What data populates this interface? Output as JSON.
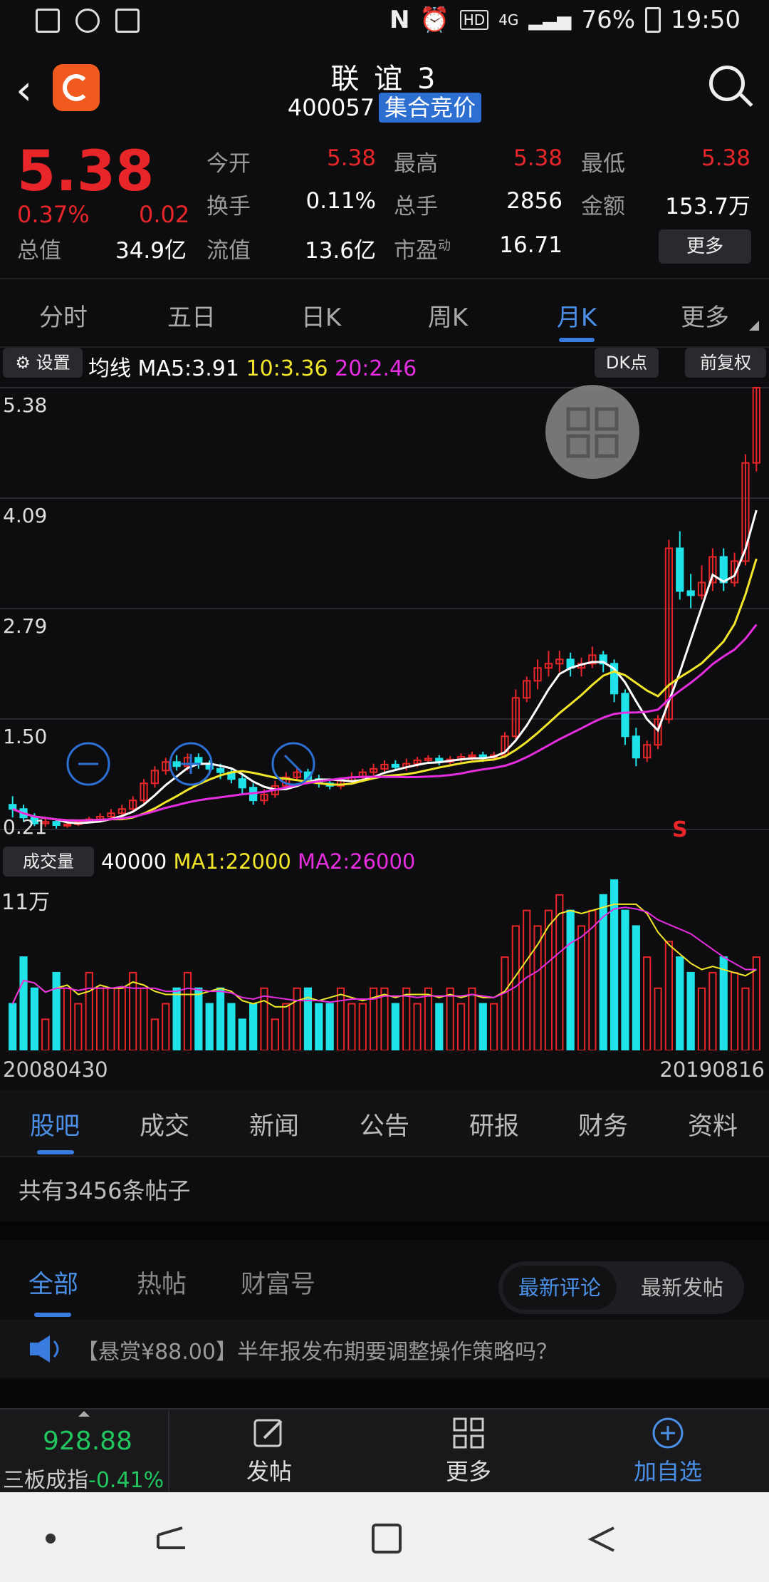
{
  "status_bar": {
    "battery": "76%",
    "time": "19:50",
    "network": "4G",
    "hd": "HD"
  },
  "header": {
    "title": "联 谊 3",
    "code": "400057",
    "badge": "集合竞价"
  },
  "quote": {
    "price": "5.38",
    "change_pct": "0.37%",
    "change": "0.02",
    "fields": [
      {
        "label": "今开",
        "value": "5.38",
        "color": "red"
      },
      {
        "label": "最高",
        "value": "5.38",
        "color": "red"
      },
      {
        "label": "最低",
        "value": "5.38",
        "color": "red"
      },
      {
        "label": "换手",
        "value": "0.11%",
        "color": "white"
      },
      {
        "label": "总手",
        "value": "2856",
        "color": "white"
      },
      {
        "label": "金额",
        "value": "153.7万",
        "color": "white"
      },
      {
        "label": "总值",
        "value": "34.9亿",
        "color": "white"
      },
      {
        "label": "流值",
        "value": "13.6亿",
        "color": "white"
      },
      {
        "label": "市盈",
        "value": "16.71",
        "color": "white"
      }
    ],
    "pe_superscript": "动",
    "more": "更多"
  },
  "period_tabs": [
    "分时",
    "五日",
    "日K",
    "周K",
    "月K",
    "更多"
  ],
  "active_period": 4,
  "ma_bar": {
    "settings": "设置",
    "label": "均线",
    "ma5": "MA5:3.91",
    "ma10": "10:3.36",
    "ma20": "20:2.46",
    "dk": "DK点",
    "adjust": "前复权"
  },
  "colors": {
    "up": "#e8262a",
    "down": "#1fe3e8",
    "ma5": "#ffffff",
    "ma10": "#f2e62a",
    "ma20": "#e62ee0",
    "accent": "#3a7be0"
  },
  "chart_data": {
    "type": "candlestick",
    "y_ticks": [
      "5.38",
      "4.09",
      "2.79",
      "1.50",
      "0.21"
    ],
    "ylim": [
      0.21,
      5.38
    ],
    "marker": "S",
    "candles": [
      [
        0.5,
        0.45,
        0.6,
        0.35
      ],
      [
        0.45,
        0.35,
        0.5,
        0.3
      ],
      [
        0.35,
        0.28,
        0.4,
        0.25
      ],
      [
        0.28,
        0.3,
        0.35,
        0.24
      ],
      [
        0.3,
        0.26,
        0.33,
        0.22
      ],
      [
        0.26,
        0.27,
        0.3,
        0.23
      ],
      [
        0.27,
        0.3,
        0.32,
        0.25
      ],
      [
        0.3,
        0.33,
        0.36,
        0.28
      ],
      [
        0.33,
        0.36,
        0.4,
        0.3
      ],
      [
        0.36,
        0.4,
        0.45,
        0.33
      ],
      [
        0.4,
        0.45,
        0.5,
        0.38
      ],
      [
        0.45,
        0.55,
        0.6,
        0.42
      ],
      [
        0.55,
        0.75,
        0.8,
        0.5
      ],
      [
        0.75,
        0.9,
        0.95,
        0.7
      ],
      [
        0.9,
        1.0,
        1.05,
        0.85
      ],
      [
        1.0,
        0.95,
        1.08,
        0.9
      ],
      [
        0.95,
        1.05,
        1.1,
        0.9
      ],
      [
        1.05,
        0.98,
        1.1,
        0.92
      ],
      [
        0.98,
        0.92,
        1.02,
        0.85
      ],
      [
        0.92,
        0.88,
        0.98,
        0.8
      ],
      [
        0.88,
        0.8,
        0.92,
        0.75
      ],
      [
        0.8,
        0.7,
        0.85,
        0.62
      ],
      [
        0.7,
        0.55,
        0.75,
        0.5
      ],
      [
        0.55,
        0.62,
        0.68,
        0.5
      ],
      [
        0.62,
        0.72,
        0.78,
        0.58
      ],
      [
        0.72,
        0.82,
        0.88,
        0.68
      ],
      [
        0.82,
        0.88,
        0.94,
        0.78
      ],
      [
        0.88,
        0.8,
        0.92,
        0.76
      ],
      [
        0.8,
        0.75,
        0.85,
        0.7
      ],
      [
        0.75,
        0.72,
        0.8,
        0.68
      ],
      [
        0.72,
        0.78,
        0.82,
        0.68
      ],
      [
        0.78,
        0.82,
        0.88,
        0.74
      ],
      [
        0.82,
        0.88,
        0.92,
        0.78
      ],
      [
        0.88,
        0.92,
        0.98,
        0.84
      ],
      [
        0.92,
        0.97,
        1.02,
        0.88
      ],
      [
        0.97,
        0.94,
        1.02,
        0.9
      ],
      [
        0.94,
        0.98,
        1.04,
        0.9
      ],
      [
        0.98,
        1.02,
        1.06,
        0.94
      ],
      [
        1.02,
        1.04,
        1.08,
        0.98
      ],
      [
        1.04,
        1.0,
        1.08,
        0.96
      ],
      [
        1.0,
        1.03,
        1.07,
        0.97
      ],
      [
        1.03,
        1.06,
        1.1,
        1.0
      ],
      [
        1.06,
        1.08,
        1.12,
        1.02
      ],
      [
        1.08,
        1.05,
        1.12,
        1.0
      ],
      [
        1.05,
        1.08,
        1.12,
        1.02
      ],
      [
        1.08,
        1.3,
        1.35,
        1.05
      ],
      [
        1.3,
        1.75,
        1.85,
        1.25
      ],
      [
        1.75,
        1.95,
        2.0,
        1.7
      ],
      [
        1.95,
        2.1,
        2.2,
        1.85
      ],
      [
        2.1,
        2.15,
        2.3,
        2.0
      ],
      [
        2.15,
        2.2,
        2.3,
        2.05
      ],
      [
        2.2,
        2.1,
        2.28,
        2.0
      ],
      [
        2.1,
        2.15,
        2.22,
        2.0
      ],
      [
        2.15,
        2.25,
        2.35,
        2.1
      ],
      [
        2.25,
        2.15,
        2.3,
        2.05
      ],
      [
        2.15,
        1.8,
        2.2,
        1.7
      ],
      [
        1.8,
        1.3,
        1.85,
        1.2
      ],
      [
        1.3,
        1.05,
        1.4,
        0.95
      ],
      [
        1.05,
        1.2,
        1.25,
        1.0
      ],
      [
        1.2,
        1.5,
        1.55,
        1.15
      ],
      [
        1.5,
        3.5,
        3.6,
        1.45
      ],
      [
        3.5,
        3.0,
        3.7,
        2.9
      ],
      [
        3.0,
        2.95,
        3.2,
        2.8
      ],
      [
        2.95,
        3.1,
        3.3,
        2.9
      ],
      [
        3.1,
        3.4,
        3.5,
        3.0
      ],
      [
        3.4,
        3.1,
        3.5,
        3.0
      ],
      [
        3.1,
        3.35,
        3.45,
        3.05
      ],
      [
        3.35,
        4.5,
        4.6,
        3.3
      ],
      [
        4.5,
        5.38,
        5.38,
        4.4
      ]
    ]
  },
  "volume": {
    "label": "成交量",
    "value": "40000",
    "ma1": "MA1:22000",
    "ma2": "MA2:26000",
    "y_tick": "11万",
    "start_date": "20080430",
    "end_date": "20190816",
    "bars": [
      3,
      6,
      4,
      2,
      5,
      4,
      3,
      5,
      4,
      4,
      4,
      5,
      4,
      2,
      3,
      4,
      5,
      4,
      3,
      4,
      3,
      2,
      3,
      4,
      2,
      3,
      4,
      4,
      3,
      3,
      4,
      3,
      3,
      4,
      4,
      3,
      4,
      3,
      4,
      3,
      4,
      3,
      4,
      3,
      3,
      6,
      8,
      9,
      8,
      9,
      10,
      9,
      8,
      9,
      10,
      11,
      9,
      8,
      6,
      4,
      7,
      6,
      5,
      4,
      5,
      6,
      5,
      4,
      6
    ],
    "max": 11
  },
  "sub_tabs": [
    "股吧",
    "成交",
    "新闻",
    "公告",
    "研报",
    "财务",
    "资料"
  ],
  "active_sub_tab": 0,
  "post_count": "共有3456条帖子",
  "filter_tabs": [
    "全部",
    "热帖",
    "财富号"
  ],
  "sort_options": [
    "最新评论",
    "最新发帖"
  ],
  "notice": "【悬赏¥88.00】半年报发布期要调整操作策略吗？",
  "bottom_bar": {
    "index_value": "928.88",
    "index_name": "三板成指",
    "index_pct": "-0.41%",
    "post": "发帖",
    "more": "更多",
    "add": "加自选"
  }
}
